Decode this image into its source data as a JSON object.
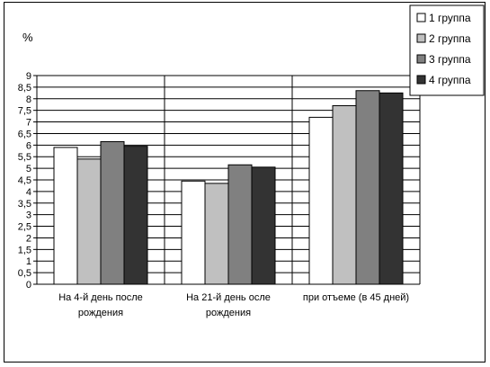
{
  "chart_data": {
    "type": "bar",
    "ylabel": "%",
    "ylim": [
      0,
      9
    ],
    "ytick_step": 0.5,
    "yticks": [
      "0",
      "0,5",
      "1",
      "1,5",
      "2",
      "2,5",
      "3",
      "3,5",
      "4",
      "4,5",
      "5",
      "5,5",
      "6",
      "6,5",
      "7",
      "7,5",
      "8",
      "8,5",
      "9"
    ],
    "grid": true,
    "legend_position": "top-right",
    "categories": [
      [
        "На 4-й день после",
        "рождения"
      ],
      [
        "На 21-й день осле",
        "рождения"
      ],
      [
        "при отъеме (в 45 дней)"
      ]
    ],
    "series": [
      {
        "name": "1 группа",
        "color": "#ffffff",
        "values": [
          5.9,
          4.45,
          7.2
        ]
      },
      {
        "name": "2 группа",
        "color": "#c0c0c0",
        "values": [
          5.4,
          4.35,
          7.7
        ]
      },
      {
        "name": "3 группа",
        "color": "#808080",
        "values": [
          6.15,
          5.15,
          8.35
        ]
      },
      {
        "name": "4 группа",
        "color": "#333333",
        "values": [
          5.95,
          5.05,
          8.25
        ]
      }
    ]
  }
}
